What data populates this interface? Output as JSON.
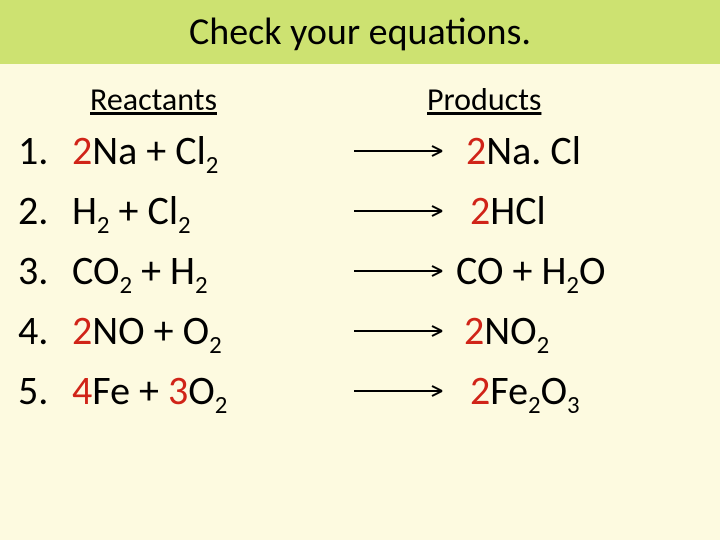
{
  "background_color": "#fdfae0",
  "title_bar_color": "#cde271",
  "text_color": "#000000",
  "coef_color": "#d02418",
  "arrow_color": "#000000",
  "title": "Check your equations.",
  "headers": {
    "reactants": "Reactants",
    "products": "Products"
  },
  "equations": [
    {
      "number": "1.",
      "reactants": "<span class=\"coef\">2</span>Na + Cl<sub>2</sub>",
      "products": "<span class=\"coef\">2</span>Na. Cl"
    },
    {
      "number": "2.",
      "reactants": "H<sub>2</sub> + Cl<sub>2</sub>",
      "products": "<span class=\"coef\">2</span>HCl"
    },
    {
      "number": "3.",
      "reactants": "CO<sub>2</sub>  +  H<sub>2</sub>",
      "products": "CO + H<sub>2</sub>O"
    },
    {
      "number": "4.",
      "reactants": "<span class=\"coef\">2</span>NO  +  O<sub>2</sub>",
      "products": "<span class=\"coef\">2</span>NO<sub>2</sub>"
    },
    {
      "number": "5.",
      "reactants": "<span class=\"coef\">4</span>Fe + <span class=\"coef\">3</span>O<sub>2</sub>",
      "products": "<span class=\"coef\">2</span>Fe<sub>2</sub>O<sub>3</sub>"
    }
  ],
  "product_indents": [
    "10px",
    "14px",
    "-22px",
    "8px",
    "14px"
  ]
}
